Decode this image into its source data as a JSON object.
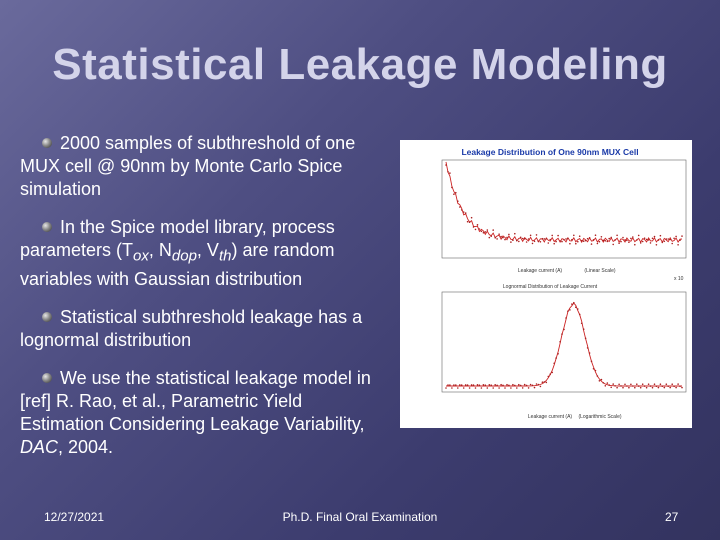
{
  "slide": {
    "title": "Statistical Leakage Modeling",
    "bullets": [
      {
        "parts": [
          "2000 samples of subthreshold of one MUX cell @ 90nm by Monte Carlo Spice simulation"
        ]
      },
      {
        "parts": [
          "In the Spice model library, process parameters (T",
          "ox",
          ", N",
          "dop",
          ", V",
          "th",
          ") are random variables with Gaussian distribution"
        ]
      },
      {
        "parts": [
          "Statistical subthreshold  leakage has a lognormal distribution"
        ]
      },
      {
        "parts": [
          "We use the statistical leakage model in [ref] R. Rao, et al., Parametric Yield Estimation Considering Leakage Variability, ",
          "DAC",
          ", 2004."
        ]
      }
    ]
  },
  "figure": {
    "top_title": "Leakage Distribution of One 90nm MUX Cell",
    "top_xlabel": "Leakage current (A)",
    "top_xlabel2": "(Linear Scale)",
    "top_exponent": "x 10",
    "bottom_title": "Lognormal Distribution of Leakage Current",
    "bottom_xlabel": "Leakage current (A)",
    "bottom_xlabel2": "(Logarithmic Scale)"
  },
  "footer": {
    "date": "12/27/2021",
    "center": "Ph.D. Final Oral Examination",
    "page": "27"
  },
  "colors": {
    "title": "#d4d4ea",
    "plot_line": "#cc2222",
    "plot_title": "#1a3aa8"
  }
}
